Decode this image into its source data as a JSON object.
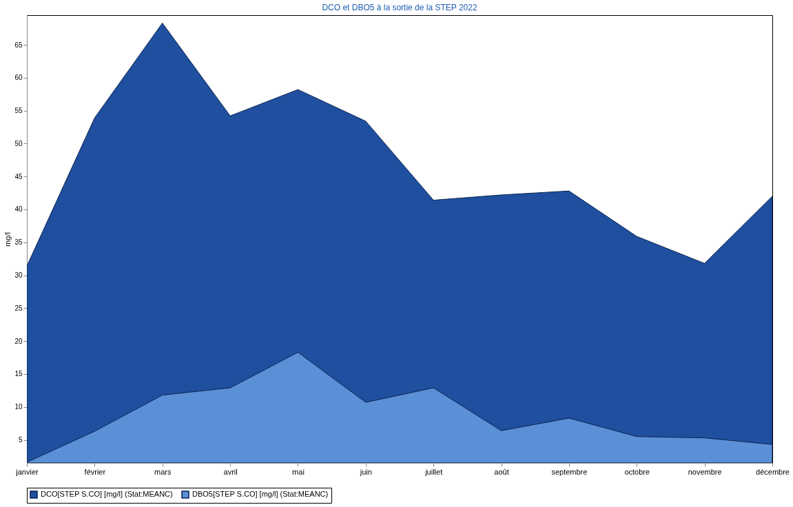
{
  "chart_data": {
    "type": "area",
    "title": "DCO et DBO5 à la sortie de la STEP 2022",
    "ylabel": "mg/l",
    "categories": [
      "janvier",
      "février",
      "mars",
      "avril",
      "mai",
      "juin",
      "juillet",
      "août",
      "septembre",
      "octobre",
      "novembre",
      "décembre"
    ],
    "series": [
      {
        "name": "DCO[STEP S.CO] [mg/l] (Stat:MEANC)",
        "color": "#1f4f9e",
        "values": [
          31.4,
          53.9,
          68.3,
          54.2,
          58.2,
          53.4,
          41.4,
          42.2,
          42.8,
          35.9,
          31.8,
          42.0
        ]
      },
      {
        "name": "DBO5[STEP S.CO] [mg/l] (Stat:MEANC)",
        "color": "#5b8fd6",
        "values": [
          1.6,
          6.3,
          11.8,
          12.9,
          18.3,
          10.7,
          12.9,
          6.4,
          8.3,
          5.5,
          5.3,
          4.3
        ]
      }
    ],
    "ylim": [
      1.5,
      69.5
    ],
    "yticks": [
      5,
      10,
      15,
      20,
      25,
      30,
      35,
      40,
      45,
      50,
      55,
      60,
      65
    ],
    "grid": false,
    "legend": "bottom"
  }
}
